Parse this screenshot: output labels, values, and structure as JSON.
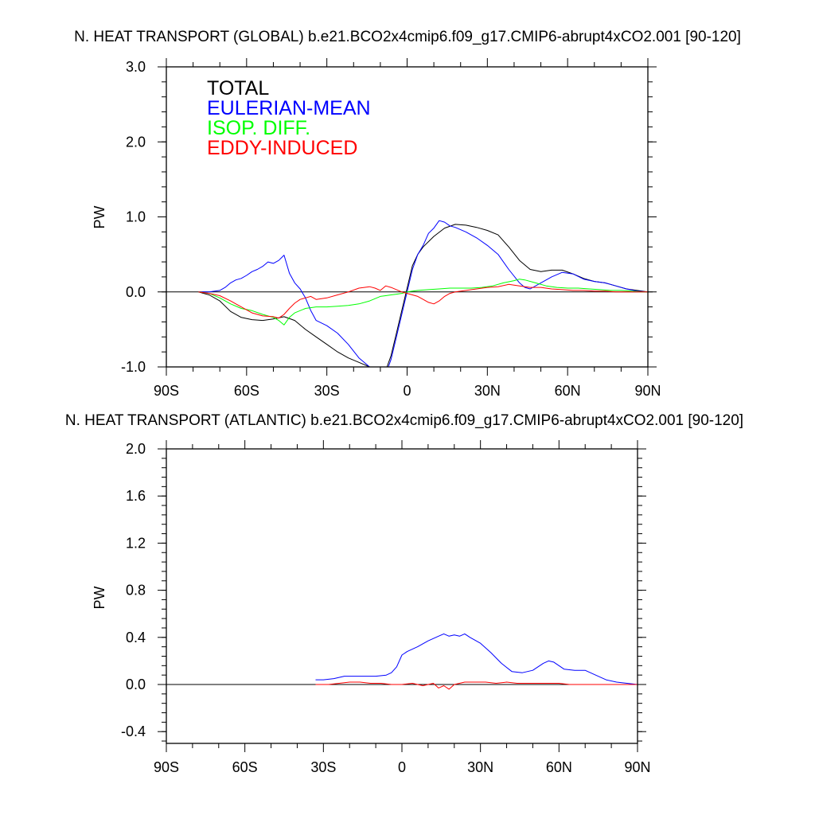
{
  "chart_data": [
    {
      "type": "line",
      "title": "N. HEAT TRANSPORT (GLOBAL) b.e21.BCO2x4cmip6.f09_g17.CMIP6-abrupt4xCO2.001 [90-120]",
      "ylabel": "PW",
      "xlabel": "",
      "xlim": [
        -90,
        90
      ],
      "ylim": [
        -1.0,
        3.0
      ],
      "grid": false,
      "legend_placement": "top-left",
      "x_ticks": [
        {
          "value": -90,
          "label": "90S"
        },
        {
          "value": -60,
          "label": "60S"
        },
        {
          "value": -30,
          "label": "30S"
        },
        {
          "value": 0,
          "label": "0"
        },
        {
          "value": 30,
          "label": "30N"
        },
        {
          "value": 60,
          "label": "60N"
        },
        {
          "value": 90,
          "label": "90N"
        }
      ],
      "y_ticks": [
        {
          "value": -1.0,
          "label": "-1.0"
        },
        {
          "value": 0.0,
          "label": "0.0"
        },
        {
          "value": 1.0,
          "label": "1.0"
        },
        {
          "value": 2.0,
          "label": "2.0"
        },
        {
          "value": 3.0,
          "label": "3.0"
        }
      ],
      "series": [
        {
          "name": "TOTAL",
          "color": "#000000",
          "x": [
            -78,
            -74,
            -70,
            -66,
            -62,
            -58,
            -54,
            -50,
            -46,
            -42,
            -38,
            -34,
            -30,
            -26,
            -22,
            -18,
            -14,
            -10,
            -8,
            -6,
            -4,
            -2,
            0,
            2,
            4,
            6,
            10,
            14,
            18,
            22,
            26,
            30,
            34,
            38,
            42,
            46,
            50,
            54,
            58,
            62,
            66,
            70,
            74,
            78,
            82,
            86,
            90
          ],
          "y": [
            0,
            -0.04,
            -0.12,
            -0.26,
            -0.34,
            -0.37,
            -0.38,
            -0.36,
            -0.33,
            -0.38,
            -0.5,
            -0.6,
            -0.7,
            -0.8,
            -0.88,
            -0.94,
            -1.0,
            -1.1,
            -1.05,
            -0.85,
            -0.55,
            -0.25,
            0.05,
            0.35,
            0.5,
            0.6,
            0.74,
            0.85,
            0.9,
            0.89,
            0.86,
            0.82,
            0.76,
            0.6,
            0.42,
            0.3,
            0.27,
            0.29,
            0.29,
            0.24,
            0.18,
            0.14,
            0.12,
            0.08,
            0.04,
            0.02,
            0
          ]
        },
        {
          "name": "EULERIAN-MEAN",
          "color": "#0000ff",
          "x": [
            -78,
            -74,
            -70,
            -68,
            -66,
            -64,
            -62,
            -60,
            -58,
            -56,
            -54,
            -52,
            -50,
            -48,
            -46,
            -44,
            -42,
            -40,
            -38,
            -36,
            -34,
            -30,
            -26,
            -22,
            -18,
            -14,
            -10,
            -8,
            -6,
            -4,
            -2,
            0,
            2,
            4,
            6,
            8,
            10,
            12,
            14,
            16,
            18,
            22,
            26,
            30,
            34,
            38,
            42,
            44,
            46,
            50,
            54,
            58,
            62,
            66,
            70,
            74,
            78,
            82,
            86,
            90
          ],
          "y": [
            0,
            0,
            0.02,
            0.06,
            0.12,
            0.16,
            0.18,
            0.22,
            0.27,
            0.3,
            0.34,
            0.4,
            0.38,
            0.42,
            0.49,
            0.25,
            0.12,
            0.04,
            -0.08,
            -0.25,
            -0.38,
            -0.45,
            -0.55,
            -0.7,
            -0.88,
            -1.0,
            -1.0,
            -1.1,
            -0.9,
            -0.6,
            -0.3,
            0.0,
            0.3,
            0.5,
            0.62,
            0.78,
            0.85,
            0.95,
            0.93,
            0.88,
            0.86,
            0.8,
            0.72,
            0.62,
            0.5,
            0.3,
            0.12,
            0.06,
            0.04,
            0.12,
            0.2,
            0.26,
            0.24,
            0.17,
            0.14,
            0.12,
            0.08,
            0.04,
            0.01,
            0
          ]
        },
        {
          "name": "ISOP. DIFF.",
          "color": "#00ff00",
          "x": [
            -78,
            -74,
            -70,
            -66,
            -62,
            -58,
            -54,
            -50,
            -48,
            -46,
            -44,
            -42,
            -38,
            -34,
            -30,
            -26,
            -22,
            -18,
            -14,
            -10,
            -8,
            -6,
            -4,
            -2,
            0,
            4,
            8,
            12,
            16,
            20,
            24,
            28,
            32,
            36,
            40,
            42,
            44,
            48,
            52,
            56,
            60,
            64,
            68,
            72,
            76,
            80,
            84,
            88,
            90
          ],
          "y": [
            0,
            -0.02,
            -0.08,
            -0.16,
            -0.22,
            -0.25,
            -0.3,
            -0.34,
            -0.38,
            -0.44,
            -0.34,
            -0.28,
            -0.22,
            -0.2,
            -0.2,
            -0.19,
            -0.18,
            -0.16,
            -0.12,
            -0.06,
            -0.05,
            -0.04,
            -0.03,
            -0.02,
            0.0,
            0.02,
            0.03,
            0.04,
            0.05,
            0.05,
            0.05,
            0.06,
            0.08,
            0.12,
            0.15,
            0.17,
            0.16,
            0.12,
            0.08,
            0.06,
            0.05,
            0.05,
            0.04,
            0.03,
            0.02,
            0.02,
            0.01,
            0.0,
            0
          ]
        },
        {
          "name": "EDDY-INDUCED",
          "color": "#ff0000",
          "x": [
            -78,
            -74,
            -70,
            -66,
            -62,
            -58,
            -54,
            -50,
            -48,
            -46,
            -44,
            -42,
            -40,
            -38,
            -36,
            -34,
            -30,
            -26,
            -22,
            -18,
            -14,
            -12,
            -10,
            -8,
            -6,
            -4,
            -2,
            0,
            2,
            4,
            6,
            8,
            10,
            12,
            14,
            16,
            18,
            22,
            26,
            30,
            34,
            38,
            42,
            46,
            50,
            54,
            58,
            62,
            66,
            70,
            74,
            78,
            82,
            86,
            90
          ],
          "y": [
            0,
            -0.02,
            -0.05,
            -0.12,
            -0.2,
            -0.28,
            -0.32,
            -0.33,
            -0.35,
            -0.3,
            -0.22,
            -0.15,
            -0.1,
            -0.08,
            -0.06,
            -0.1,
            -0.08,
            -0.04,
            0.0,
            0.05,
            0.07,
            0.05,
            0.02,
            0.08,
            0.06,
            0.03,
            0.0,
            -0.02,
            -0.04,
            -0.06,
            -0.1,
            -0.14,
            -0.16,
            -0.12,
            -0.06,
            -0.02,
            0.0,
            0.02,
            0.04,
            0.06,
            0.07,
            0.1,
            0.08,
            0.06,
            0.06,
            0.04,
            0.03,
            0.02,
            0.02,
            0.01,
            0.01,
            0.0,
            0.0,
            0.0,
            0
          ]
        }
      ],
      "legend_colors": [
        "#000000",
        "#0000ff",
        "#00ff00",
        "#ff0000"
      ]
    },
    {
      "type": "line",
      "title": "N. HEAT TRANSPORT (ATLANTIC) b.e21.BCO2x4cmip6.f09_g17.CMIP6-abrupt4xCO2.001 [90-120]",
      "ylabel": "PW",
      "xlabel": "",
      "xlim": [
        -90,
        90
      ],
      "ylim": [
        -0.5,
        2.0
      ],
      "grid": false,
      "x_ticks": [
        {
          "value": -90,
          "label": "90S"
        },
        {
          "value": -60,
          "label": "60S"
        },
        {
          "value": -30,
          "label": "30S"
        },
        {
          "value": 0,
          "label": "0"
        },
        {
          "value": 30,
          "label": "30N"
        },
        {
          "value": 60,
          "label": "60N"
        },
        {
          "value": 90,
          "label": "90N"
        }
      ],
      "y_ticks": [
        {
          "value": -0.4,
          "label": "-0.4"
        },
        {
          "value": 0.0,
          "label": "0.0"
        },
        {
          "value": 0.4,
          "label": "0.4"
        },
        {
          "value": 0.8,
          "label": "0.8"
        },
        {
          "value": 1.2,
          "label": "1.2"
        },
        {
          "value": 1.6,
          "label": "1.6"
        },
        {
          "value": 2.0,
          "label": "2.0"
        }
      ],
      "series": [
        {
          "color": "#0000ff",
          "x": [
            -33,
            -30,
            -26,
            -22,
            -18,
            -14,
            -10,
            -6,
            -4,
            -2,
            0,
            2,
            6,
            10,
            14,
            16,
            18,
            20,
            22,
            24,
            26,
            30,
            34,
            38,
            42,
            46,
            50,
            54,
            56,
            58,
            62,
            66,
            70,
            74,
            78,
            82,
            86,
            90
          ],
          "y": [
            0.04,
            0.04,
            0.05,
            0.07,
            0.07,
            0.07,
            0.07,
            0.08,
            0.1,
            0.15,
            0.25,
            0.28,
            0.32,
            0.37,
            0.41,
            0.43,
            0.41,
            0.42,
            0.41,
            0.43,
            0.4,
            0.35,
            0.27,
            0.18,
            0.11,
            0.1,
            0.12,
            0.18,
            0.2,
            0.19,
            0.13,
            0.12,
            0.12,
            0.08,
            0.04,
            0.02,
            0.01,
            0
          ]
        },
        {
          "color": "#ff0000",
          "x": [
            -33,
            -28,
            -24,
            -20,
            -16,
            -12,
            -8,
            -4,
            0,
            4,
            8,
            12,
            14,
            16,
            18,
            20,
            24,
            28,
            32,
            36,
            40,
            44,
            48,
            52,
            56,
            60,
            64,
            68,
            72,
            76,
            80,
            84,
            88,
            90
          ],
          "y": [
            0.0,
            0.0,
            0.01,
            0.02,
            0.02,
            0.01,
            0.01,
            0.0,
            0.0,
            0.01,
            -0.01,
            0.01,
            -0.03,
            -0.01,
            -0.04,
            0.0,
            0.02,
            0.02,
            0.02,
            0.01,
            0.02,
            0.01,
            0.01,
            0.01,
            0.01,
            0.01,
            0.0,
            0.0,
            0.0,
            0.0,
            0.0,
            0.0,
            0.0,
            0
          ]
        }
      ]
    }
  ]
}
